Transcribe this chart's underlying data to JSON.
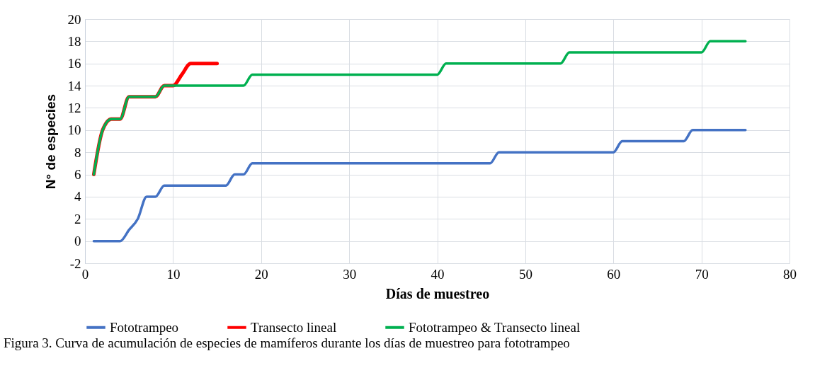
{
  "chart_data": {
    "type": "line",
    "xlabel": "Días de muestreo",
    "ylabel": "N° de especies",
    "x": [
      1,
      2,
      3,
      4,
      5,
      6,
      7,
      8,
      9,
      10,
      11,
      12,
      13,
      14,
      15,
      16,
      17,
      18,
      19,
      20,
      21,
      22,
      23,
      24,
      25,
      26,
      27,
      28,
      29,
      30,
      31,
      32,
      33,
      34,
      35,
      36,
      37,
      38,
      39,
      40,
      41,
      42,
      43,
      44,
      45,
      46,
      47,
      48,
      49,
      50,
      51,
      52,
      53,
      54,
      55,
      56,
      57,
      58,
      59,
      60,
      61,
      62,
      63,
      64,
      65,
      66,
      67,
      68,
      69,
      70,
      71,
      72,
      73,
      74,
      75
    ],
    "series": [
      {
        "name": "Fototrampeo",
        "color": "#4472c4",
        "values": [
          0,
          0,
          0,
          0,
          1,
          2,
          4,
          4,
          5,
          5,
          5,
          5,
          5,
          5,
          5,
          5,
          6,
          6,
          7,
          7,
          7,
          7,
          7,
          7,
          7,
          7,
          7,
          7,
          7,
          7,
          7,
          7,
          7,
          7,
          7,
          7,
          7,
          7,
          7,
          7,
          7,
          7,
          7,
          7,
          7,
          7,
          8,
          8,
          8,
          8,
          8,
          8,
          8,
          8,
          8,
          8,
          8,
          8,
          8,
          8,
          9,
          9,
          9,
          9,
          9,
          9,
          9,
          9,
          10,
          10,
          10,
          10,
          10,
          10,
          10
        ]
      },
      {
        "name": "Transecto lineal",
        "color": "#ff0000",
        "x": [
          1,
          2,
          3,
          4,
          5,
          6,
          7,
          8,
          9,
          10,
          11,
          12,
          13,
          14,
          15
        ],
        "values": [
          6,
          10,
          11,
          11,
          13,
          13,
          13,
          13,
          14,
          14,
          15,
          16,
          16,
          16,
          16
        ]
      },
      {
        "name": "Fototrampeo & Transecto lineal",
        "color": "#00b050",
        "values": [
          6,
          10,
          11,
          11,
          13,
          13,
          13,
          13,
          14,
          14,
          14,
          14,
          14,
          14,
          14,
          14,
          14,
          14,
          15,
          15,
          15,
          15,
          15,
          15,
          15,
          15,
          15,
          15,
          15,
          15,
          15,
          15,
          15,
          15,
          15,
          15,
          15,
          15,
          15,
          15,
          16,
          16,
          16,
          16,
          16,
          16,
          16,
          16,
          16,
          16,
          16,
          16,
          16,
          16,
          17,
          17,
          17,
          17,
          17,
          17,
          17,
          17,
          17,
          17,
          17,
          17,
          17,
          17,
          17,
          17,
          18,
          18,
          18,
          18,
          18
        ]
      }
    ],
    "xlim": [
      0,
      80
    ],
    "xticks": [
      0,
      10,
      20,
      30,
      40,
      50,
      60,
      70,
      80
    ],
    "ylim": [
      -2,
      20
    ],
    "yticks": [
      -2,
      0,
      2,
      4,
      6,
      8,
      10,
      12,
      14,
      16,
      18,
      20
    ],
    "grid": true,
    "legend": "bottom",
    "annotations": [
      "Figura 3. Curva de acumulación de especies de mamíferos durante los días de muestreo para fototrampeo"
    ]
  }
}
